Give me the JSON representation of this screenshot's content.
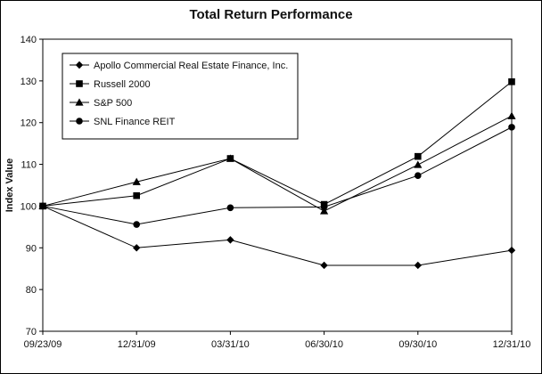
{
  "chart_data": {
    "type": "line",
    "title": "Total Return Performance",
    "xlabel": "",
    "ylabel": "Index Value",
    "ylim": [
      70,
      140
    ],
    "yticks": [
      70,
      80,
      90,
      100,
      110,
      120,
      130,
      140
    ],
    "categories": [
      "09/23/09",
      "12/31/09",
      "03/31/10",
      "06/30/10",
      "09/30/10",
      "12/31/10"
    ],
    "legend_position": "top-left",
    "grid": false,
    "series": [
      {
        "name": "Apollo Commercial Real Estate Finance, Inc.",
        "marker": "diamond",
        "values": [
          100,
          90.0,
          91.9,
          85.8,
          85.8,
          89.4
        ]
      },
      {
        "name": "Russell 2000",
        "marker": "square",
        "values": [
          100,
          102.5,
          111.4,
          100.4,
          111.9,
          129.8
        ]
      },
      {
        "name": "S&P 500",
        "marker": "triangle",
        "values": [
          100,
          105.8,
          111.4,
          98.8,
          109.9,
          121.6
        ]
      },
      {
        "name": "SNL Finance REIT",
        "marker": "circle",
        "values": [
          100,
          95.6,
          99.6,
          99.8,
          107.3,
          118.9
        ]
      }
    ]
  }
}
